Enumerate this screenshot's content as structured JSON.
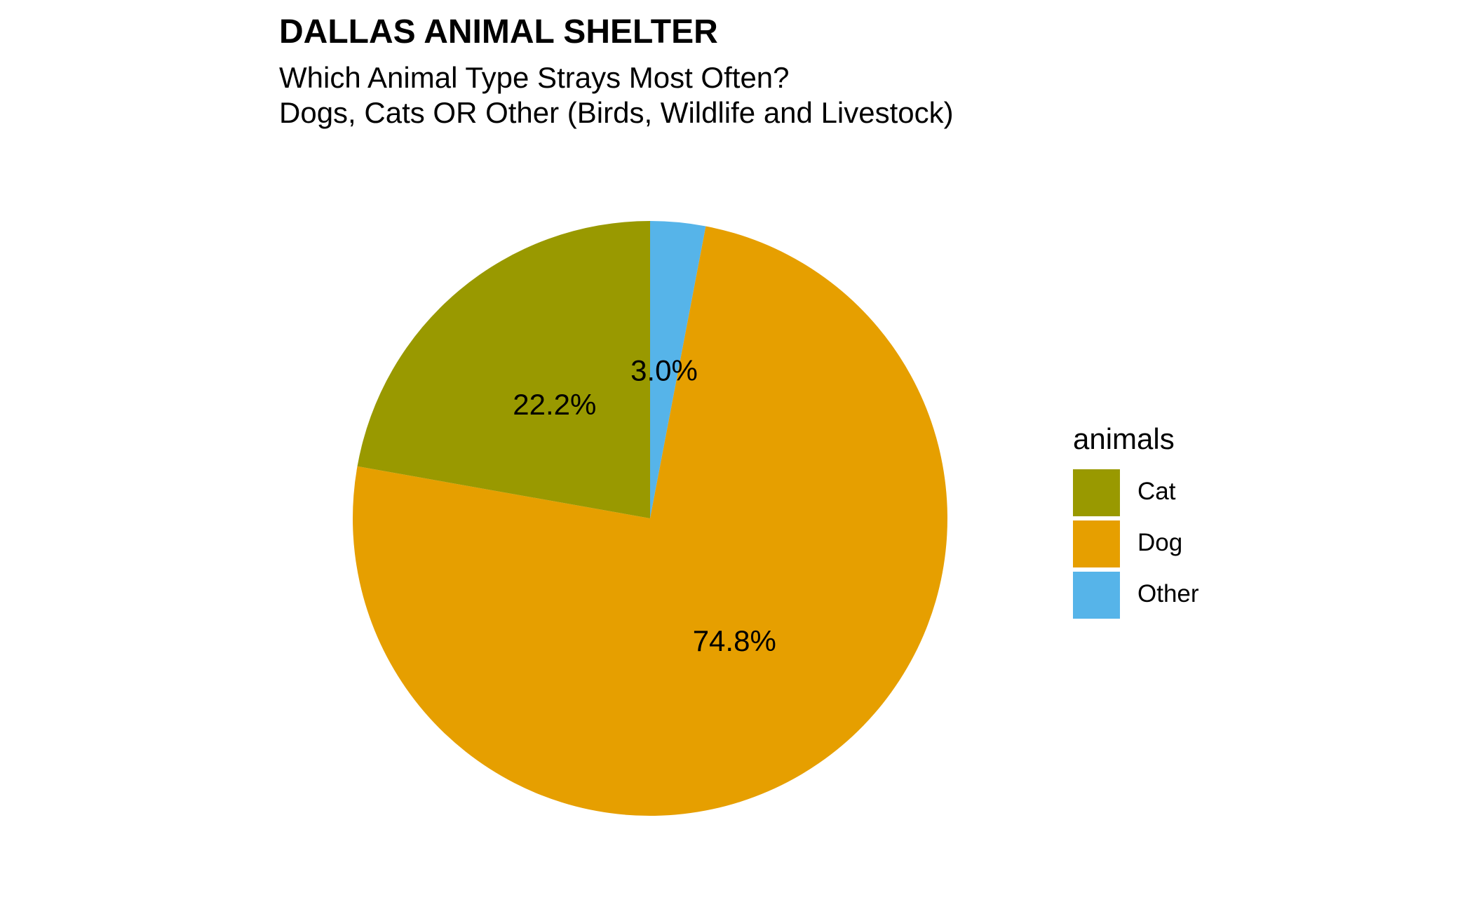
{
  "chart_data": {
    "type": "pie",
    "title": "DALLAS ANIMAL SHELTER",
    "subtitle": [
      "Which Animal Type Strays Most Often?",
      "Dogs, Cats OR Other (Birds, Wildlife and Livestock)"
    ],
    "categories": [
      "Cat",
      "Dog",
      "Other"
    ],
    "values": [
      22.2,
      74.8,
      3.0
    ],
    "value_labels": [
      "22.2%",
      "74.8%",
      "3.0%"
    ],
    "colors": [
      "#999900",
      "#E69F00",
      "#56B4E9"
    ],
    "legend": {
      "title": "animals",
      "placement": "right"
    }
  }
}
